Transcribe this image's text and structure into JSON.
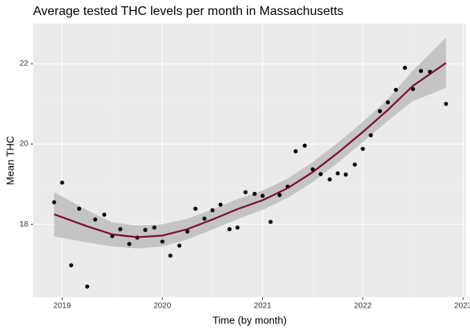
{
  "chart_data": {
    "type": "scatter",
    "title": "Average tested THC levels per month in Massachusetts",
    "x_label": "Time (by month)",
    "y_label": "Mean THC",
    "xlim": [
      2018.71,
      2023.03
    ],
    "ylim": [
      16.18,
      23.0
    ],
    "xticks": [
      2019,
      2020,
      2021,
      2022,
      2023
    ],
    "yticks": [
      18,
      20,
      22
    ],
    "grid": true,
    "point_color": "#000000",
    "points": {
      "x": [
        2018.92,
        2019.0,
        2019.09,
        2019.17,
        2019.25,
        2019.33,
        2019.42,
        2019.5,
        2019.58,
        2019.67,
        2019.75,
        2019.83,
        2019.92,
        2020.0,
        2020.08,
        2020.17,
        2020.25,
        2020.33,
        2020.42,
        2020.5,
        2020.58,
        2020.67,
        2020.75,
        2020.83,
        2020.92,
        2021.0,
        2021.08,
        2021.17,
        2021.25,
        2021.33,
        2021.42,
        2021.5,
        2021.58,
        2021.67,
        2021.75,
        2021.83,
        2021.92,
        2022.0,
        2022.08,
        2022.17,
        2022.25,
        2022.33,
        2022.42,
        2022.5,
        2022.58,
        2022.67,
        2022.83
      ],
      "values": [
        18.55,
        19.04,
        16.98,
        18.39,
        16.45,
        18.12,
        18.24,
        17.71,
        17.88,
        17.51,
        17.67,
        17.86,
        17.92,
        17.57,
        17.22,
        17.47,
        17.82,
        18.39,
        18.14,
        18.35,
        18.49,
        17.88,
        17.92,
        18.8,
        18.76,
        18.71,
        18.06,
        18.73,
        18.94,
        19.82,
        19.96,
        19.37,
        19.25,
        19.12,
        19.27,
        19.24,
        19.49,
        19.88,
        20.22,
        20.82,
        21.04,
        21.35,
        21.9,
        21.37,
        21.82,
        21.8,
        21.0
      ]
    },
    "smooth": {
      "color": "#7a0b35",
      "band_color": "#bdbdbd",
      "x": [
        2018.92,
        2019.25,
        2019.5,
        2019.75,
        2020.0,
        2020.25,
        2020.5,
        2020.75,
        2021.0,
        2021.25,
        2021.5,
        2021.75,
        2022.0,
        2022.25,
        2022.5,
        2022.83
      ],
      "values": [
        18.25,
        17.95,
        17.75,
        17.68,
        17.72,
        17.88,
        18.12,
        18.38,
        18.6,
        18.9,
        19.3,
        19.78,
        20.3,
        20.85,
        21.45,
        22.02
      ],
      "lower": [
        17.7,
        17.55,
        17.45,
        17.4,
        17.45,
        17.62,
        17.87,
        18.13,
        18.36,
        18.66,
        19.05,
        19.53,
        20.05,
        20.58,
        21.07,
        21.4
      ],
      "upper": [
        18.8,
        18.35,
        18.05,
        17.97,
        18.0,
        18.14,
        18.37,
        18.63,
        18.84,
        19.14,
        19.55,
        20.03,
        20.55,
        21.12,
        21.83,
        22.65
      ]
    }
  }
}
